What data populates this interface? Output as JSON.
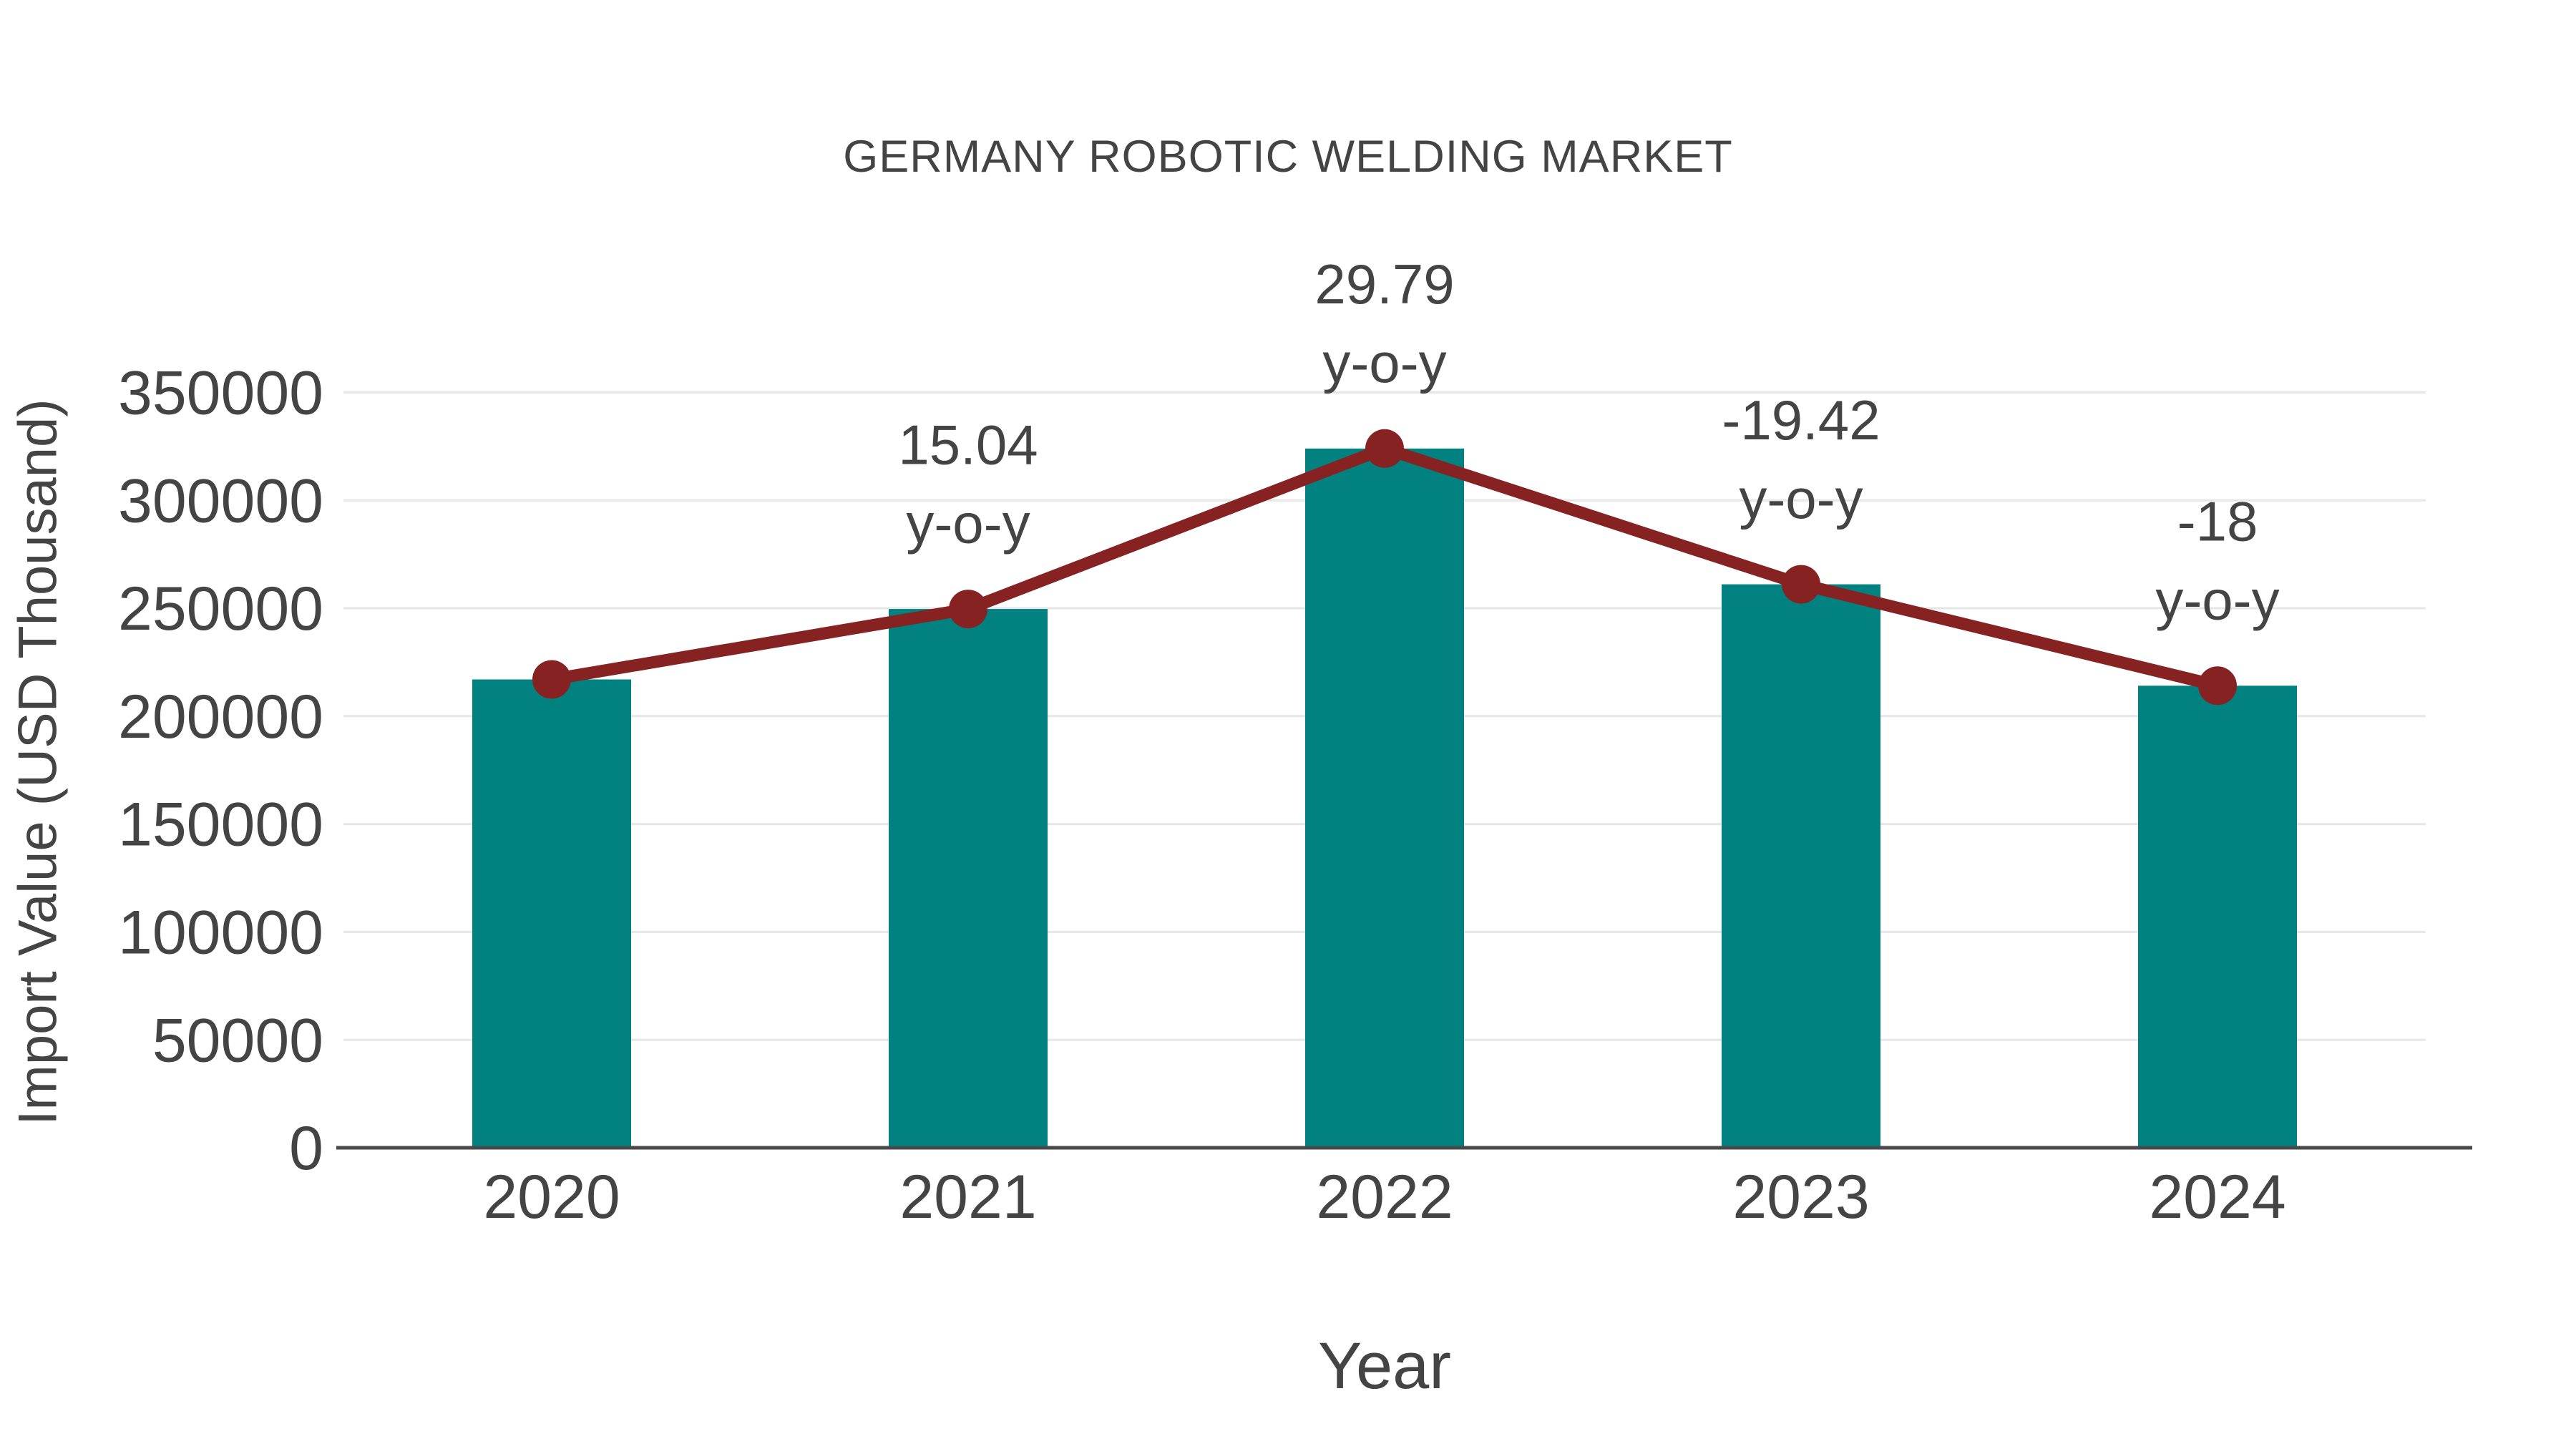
{
  "title": "GERMANY ROBOTIC WELDING MARKET",
  "axes": {
    "x_title": "Year",
    "y_title": "Import Value (USD Thousand)"
  },
  "colors": {
    "bar": "#018280",
    "line": "#872222",
    "marker": "#872222",
    "text": "#444444",
    "grid": "#e6e6e6",
    "axis": "#4a4a4a",
    "background": "#ffffff"
  },
  "chart_data": {
    "type": "bar",
    "title": "GERMANY ROBOTIC WELDING MARKET",
    "xlabel": "Year",
    "ylabel": "Import Value (USD Thousand)",
    "categories": [
      "2020",
      "2021",
      "2022",
      "2023",
      "2024"
    ],
    "series": [
      {
        "name": "Import Value (USD Thousand)",
        "type": "bar",
        "values": [
          217000,
          249637,
          324003,
          261082,
          214088
        ]
      },
      {
        "name": "y-o-y change (%)",
        "type": "line",
        "values": [
          null,
          15.04,
          29.79,
          -19.42,
          -18
        ],
        "aligned_to": "bar_tops"
      }
    ],
    "annotations": [
      {
        "category": "2021",
        "line1": "15.04",
        "line2": "y-o-y"
      },
      {
        "category": "2022",
        "line1": "29.79",
        "line2": "y-o-y"
      },
      {
        "category": "2023",
        "line1": "-19.42",
        "line2": "y-o-y"
      },
      {
        "category": "2024",
        "line1": "-18",
        "line2": "y-o-y"
      }
    ],
    "ylim": [
      0,
      350000
    ],
    "yticks": [
      0,
      50000,
      100000,
      150000,
      200000,
      250000,
      300000,
      350000
    ],
    "grid": true,
    "legend_position": "none"
  }
}
